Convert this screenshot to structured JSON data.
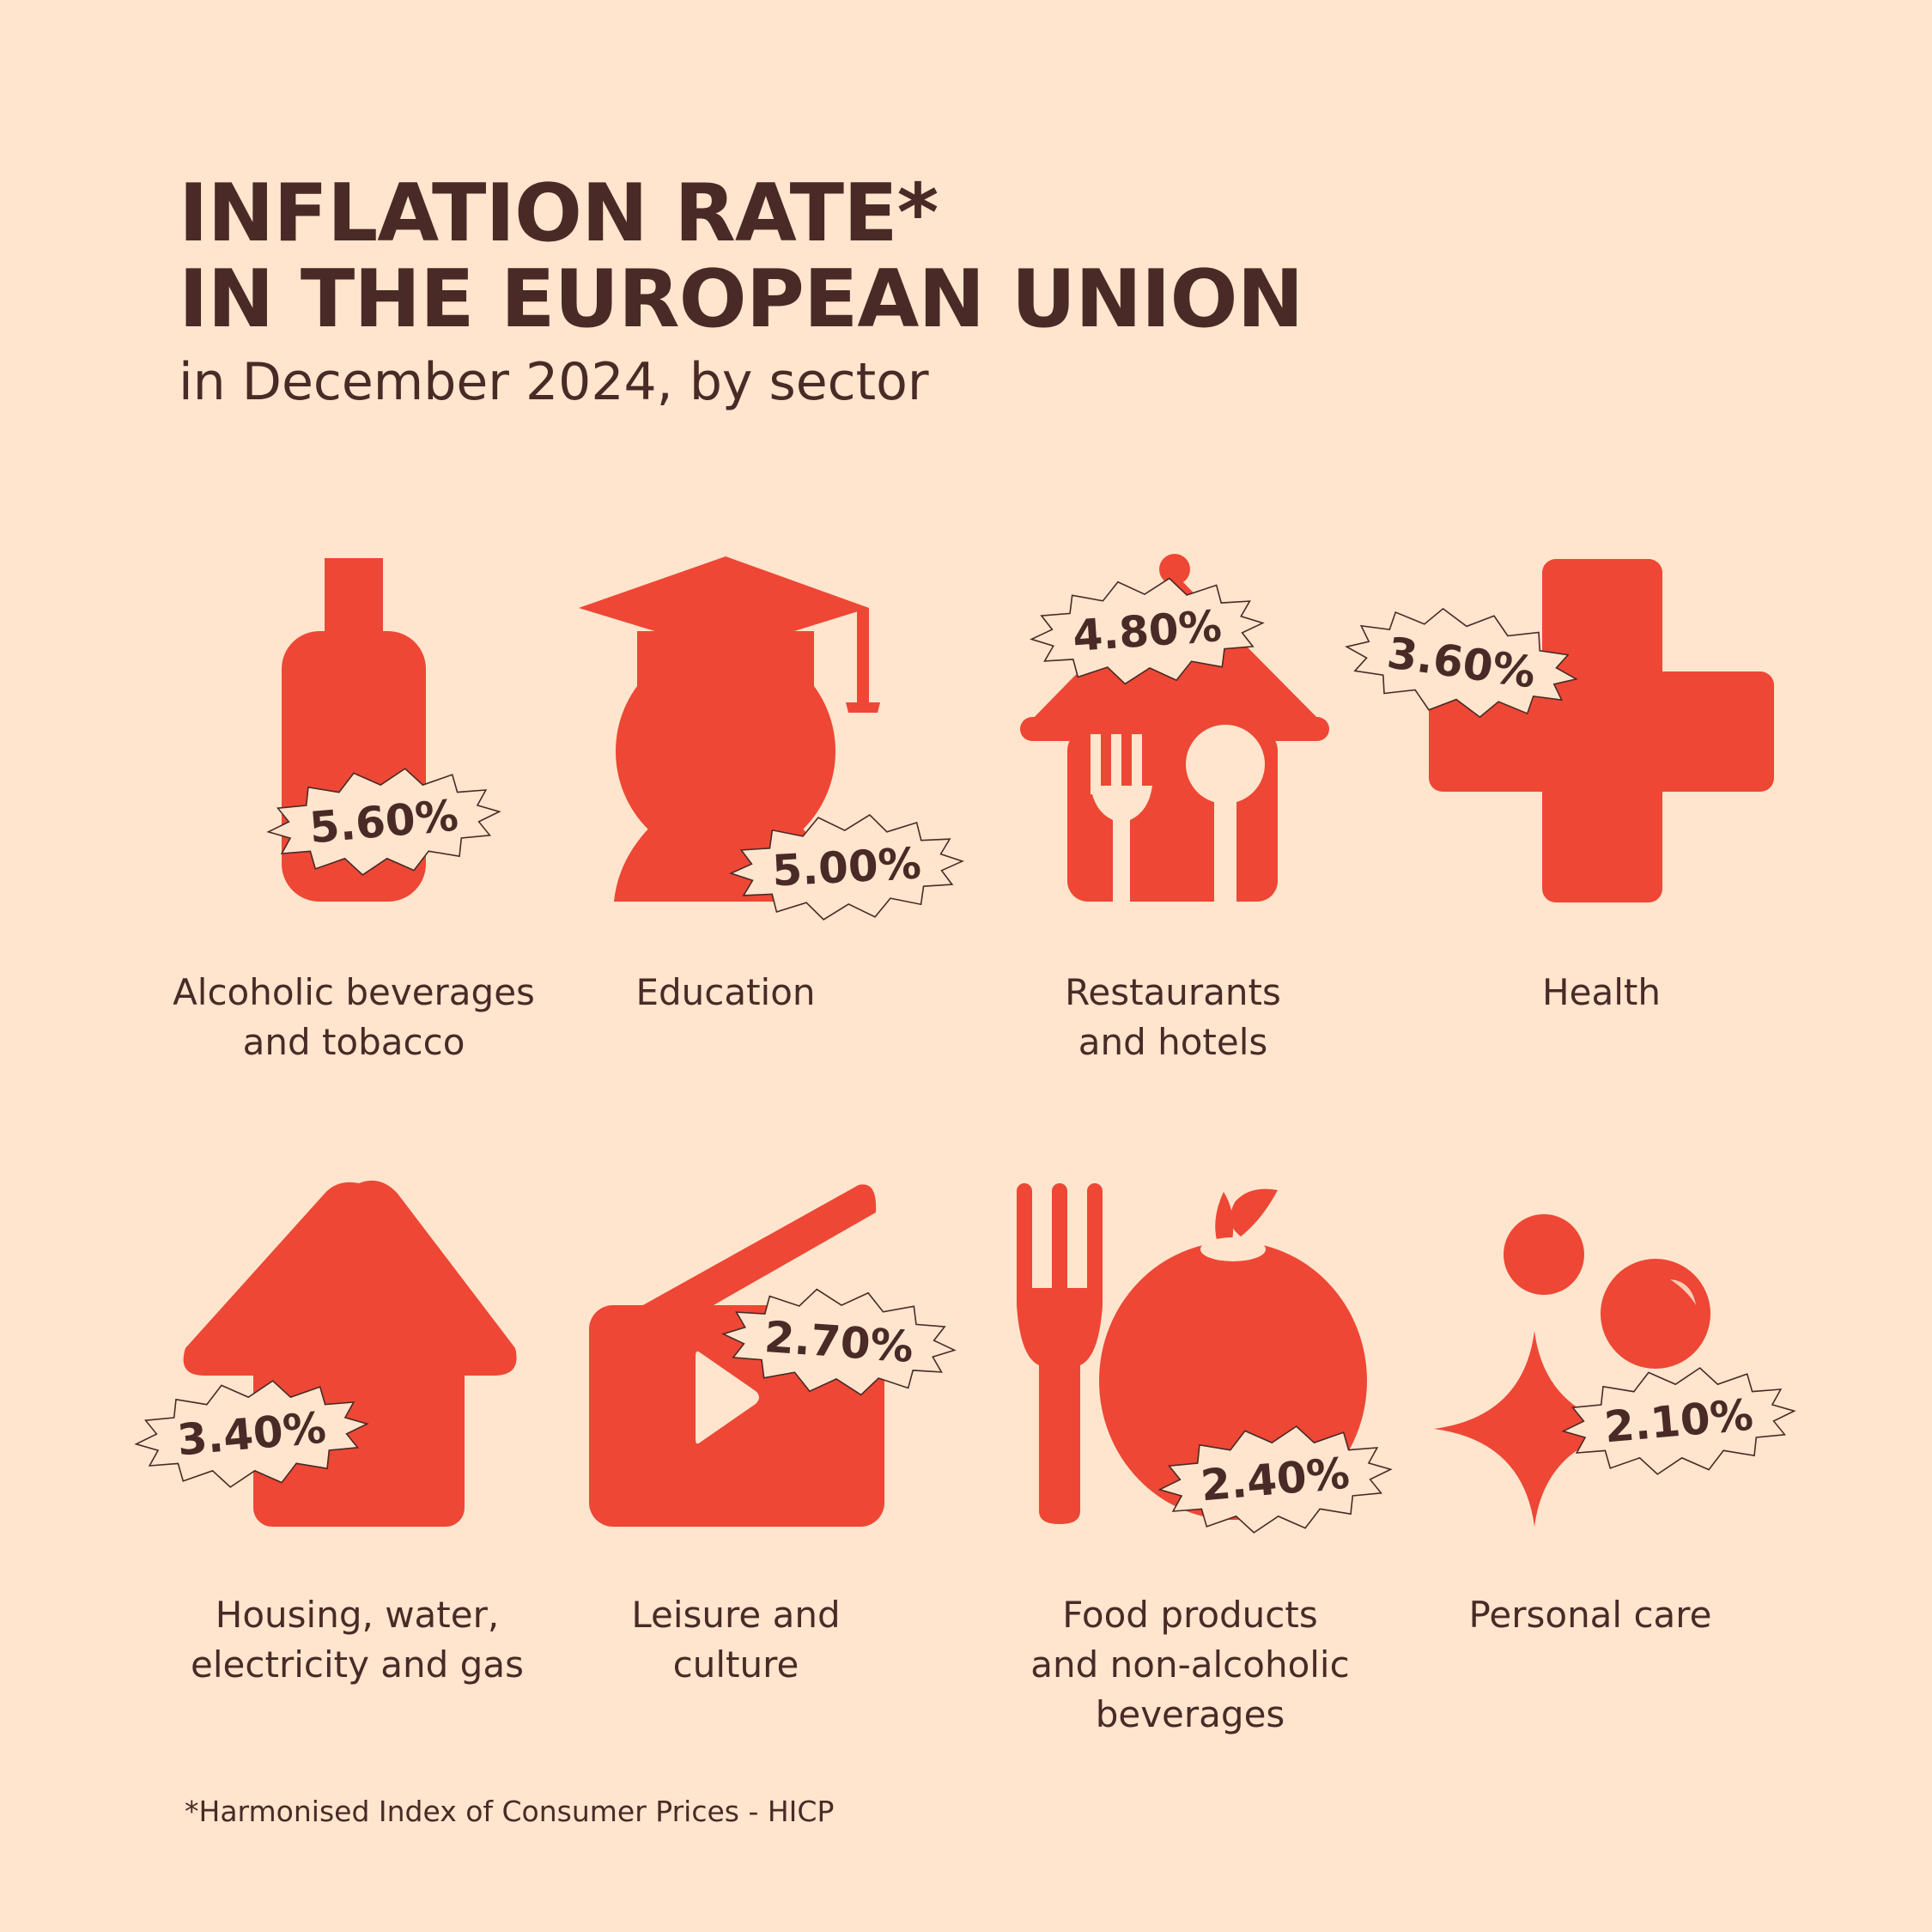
{
  "chart_data": {
    "type": "table",
    "title": [
      "INFLATION RATE*",
      "IN THE EUROPEAN UNION"
    ],
    "subtitle": "in December 2024, by sector",
    "footnote": "*Harmonised Index of Consumer Prices - HICP",
    "unit": "%",
    "categories": [
      "Alcoholic beverages and tobacco",
      "Education",
      "Restaurants and hotels",
      "Health",
      "Housing, water, electricity and gas",
      "Leisure and culture",
      "Food products and non-alcoholic beverages",
      "Personal care"
    ],
    "values": [
      5.6,
      5.0,
      4.8,
      3.6,
      3.4,
      2.7,
      2.4,
      2.1
    ],
    "value_labels": [
      "5.60%",
      "5.00%",
      "4.80%",
      "3.60%",
      "3.40%",
      "2.70%",
      "2.40%",
      "2.10%"
    ],
    "label_lines": [
      [
        "Alcoholic beverages",
        "and tobacco"
      ],
      [
        "Education"
      ],
      [
        "Restaurants",
        "and hotels"
      ],
      [
        "Health"
      ],
      [
        "Housing, water,",
        "electricity and gas"
      ],
      [
        "Leisure and",
        "culture"
      ],
      [
        "Food products",
        "and non-alcoholic",
        "beverages"
      ],
      [
        "Personal care"
      ]
    ],
    "icons": [
      "bottle-icon",
      "graduate-icon",
      "restaurant-house-icon",
      "medical-cross-icon",
      "house-icon",
      "clapperboard-play-icon",
      "fork-apple-icon",
      "sparkle-bubbles-icon"
    ],
    "colors": {
      "background": "#FFE5CE",
      "icon": "#EE4735",
      "text": "#4A2A26"
    }
  }
}
